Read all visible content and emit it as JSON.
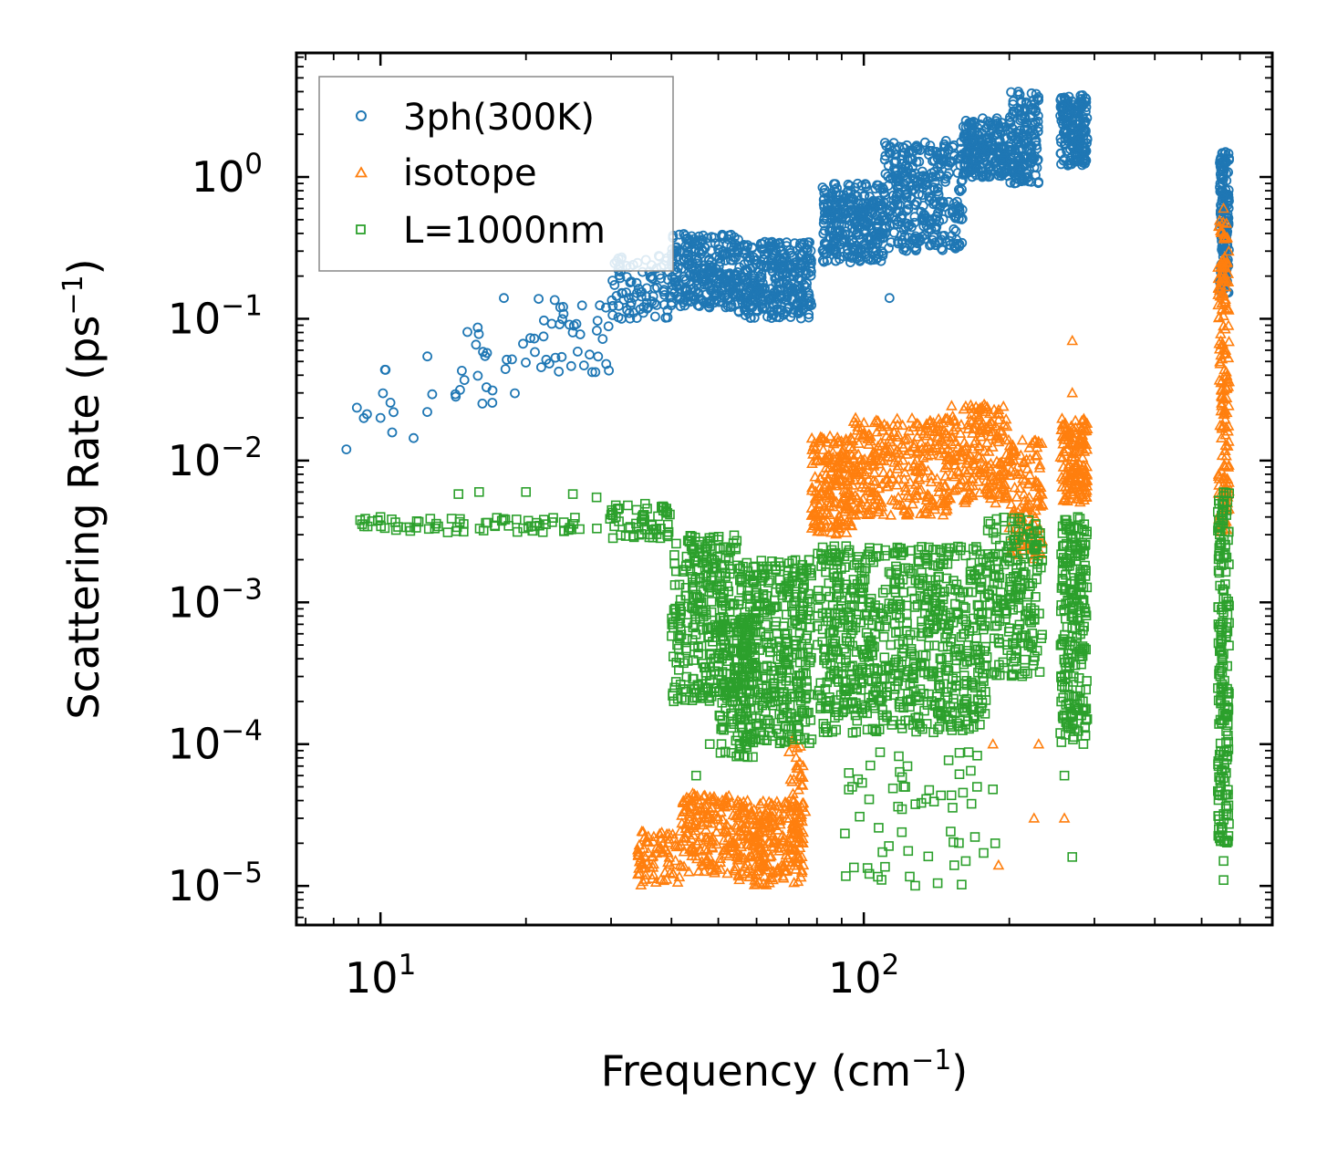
{
  "chart_data": {
    "type": "scatter",
    "xscale": "log",
    "yscale": "log",
    "xlabel": "Frequency (cm",
    "xlabel_unit_exp": "−1",
    "xlabel_close": ")",
    "ylabel": "Scattering Rate (ps",
    "ylabel_unit_exp": "−1",
    "ylabel_close": ")",
    "xlim": [
      6.7,
      700
    ],
    "ylim": [
      5.3e-06,
      7.5
    ],
    "x_ticks": [
      {
        "value": 10,
        "base": "10",
        "exp": "1"
      },
      {
        "value": 100,
        "base": "10",
        "exp": "2"
      }
    ],
    "y_ticks": [
      {
        "value": 1,
        "base": "10",
        "exp": "0"
      },
      {
        "value": 0.1,
        "base": "10",
        "exp": "−1"
      },
      {
        "value": 0.01,
        "base": "10",
        "exp": "−2"
      },
      {
        "value": 0.001,
        "base": "10",
        "exp": "−3"
      },
      {
        "value": 0.0001,
        "base": "10",
        "exp": "−4"
      },
      {
        "value": 1e-05,
        "base": "10",
        "exp": "−5"
      }
    ],
    "legend_position": "top-left",
    "series": [
      {
        "name": "3ph(300K)",
        "marker": "circle",
        "color": "#1f77b4",
        "bands": [
          {
            "x": [
              8.5,
              12
            ],
            "y": [
              0.012,
              0.05
            ],
            "n": 10
          },
          {
            "x": [
              12,
              20
            ],
            "y": [
              0.025,
              0.09
            ],
            "n": 25
          },
          {
            "x": [
              20,
              30
            ],
            "y": [
              0.04,
              0.14
            ],
            "n": 40
          },
          {
            "x": [
              30,
              40
            ],
            "y": [
              0.1,
              0.28
            ],
            "n": 90
          },
          {
            "x": [
              40,
              55
            ],
            "y": [
              0.12,
              0.4
            ],
            "n": 280
          },
          {
            "x": [
              55,
              78
            ],
            "y": [
              0.1,
              0.35
            ],
            "n": 320
          },
          {
            "x": [
              82,
              110
            ],
            "y": [
              0.25,
              0.9
            ],
            "n": 300
          },
          {
            "x": [
              110,
              160
            ],
            "y": [
              0.3,
              1.8
            ],
            "n": 320
          },
          {
            "x": [
              160,
              200
            ],
            "y": [
              1.0,
              2.6
            ],
            "n": 200
          },
          {
            "x": [
              200,
              230
            ],
            "y": [
              0.9,
              4.0
            ],
            "n": 160
          },
          {
            "x": [
              255,
              290
            ],
            "y": [
              1.2,
              3.8
            ],
            "n": 180
          },
          {
            "x": [
              545,
              570
            ],
            "y": [
              0.15,
              1.5
            ],
            "n": 160
          }
        ],
        "points": [
          [
            18,
            0.14
          ],
          [
            113,
            0.14
          ],
          [
            12.5,
            0.022
          ],
          [
            10,
            0.02
          ],
          [
            8.5,
            0.012
          ]
        ]
      },
      {
        "name": "isotope",
        "marker": "triangle",
        "color": "#ff7f0e",
        "bands": [
          {
            "x": [
              34,
              42
            ],
            "y": [
              1e-05,
              2.5e-05
            ],
            "n": 80
          },
          {
            "x": [
              42,
              55
            ],
            "y": [
              1.2e-05,
              4.5e-05
            ],
            "n": 180
          },
          {
            "x": [
              55,
              75
            ],
            "y": [
              1e-05,
              4e-05
            ],
            "n": 260
          },
          {
            "x": [
              70,
              76
            ],
            "y": [
              2e-05,
              0.00012
            ],
            "n": 40
          },
          {
            "x": [
              78,
              95
            ],
            "y": [
              0.003,
              0.015
            ],
            "n": 200
          },
          {
            "x": [
              95,
              150
            ],
            "y": [
              0.004,
              0.02
            ],
            "n": 300
          },
          {
            "x": [
              150,
              200
            ],
            "y": [
              0.005,
              0.025
            ],
            "n": 200
          },
          {
            "x": [
              200,
              235
            ],
            "y": [
              0.002,
              0.015
            ],
            "n": 120
          },
          {
            "x": [
              255,
              290
            ],
            "y": [
              0.005,
              0.02
            ],
            "n": 150
          },
          {
            "x": [
              540,
              570
            ],
            "y": [
              0.003,
              0.5
            ],
            "n": 180
          }
        ],
        "points": [
          [
            270,
            0.07
          ],
          [
            270,
            0.03
          ],
          [
            185,
            0.0001
          ],
          [
            190,
            1.4e-05
          ],
          [
            225,
            3e-05
          ],
          [
            260,
            3e-05
          ],
          [
            555,
            0.6
          ],
          [
            230,
            0.0001
          ]
        ]
      },
      {
        "name": "L=1000nm",
        "marker": "square",
        "color": "#2ca02c",
        "bands": [
          {
            "x": [
              8.5,
              30
            ],
            "y": [
              0.0031,
              0.004
            ],
            "n": 70
          },
          {
            "x": [
              30,
              40
            ],
            "y": [
              0.0028,
              0.005
            ],
            "n": 60
          },
          {
            "x": [
              40,
              55
            ],
            "y": [
              0.0002,
              0.003
            ],
            "n": 300
          },
          {
            "x": [
              50,
              60
            ],
            "y": [
              8e-05,
              0.0008
            ],
            "n": 120
          },
          {
            "x": [
              55,
              78
            ],
            "y": [
              0.0001,
              0.002
            ],
            "n": 400
          },
          {
            "x": [
              80,
              180
            ],
            "y": [
              0.00012,
              0.0025
            ],
            "n": 750
          },
          {
            "x": [
              180,
              235
            ],
            "y": [
              0.0003,
              0.004
            ],
            "n": 200
          },
          {
            "x": [
              255,
              290
            ],
            "y": [
              0.0001,
              0.004
            ],
            "n": 220
          },
          {
            "x": [
              540,
              570
            ],
            "y": [
              2e-05,
              0.006
            ],
            "n": 200
          },
          {
            "x": [
              90,
              180
            ],
            "y": [
              1e-05,
              9e-05
            ],
            "n": 60
          }
        ],
        "points": [
          [
            12,
            0.0037
          ],
          [
            16,
            0.006
          ],
          [
            14.5,
            0.0058
          ],
          [
            10,
            0.004
          ],
          [
            20,
            0.006
          ],
          [
            25,
            0.0058
          ],
          [
            28,
            0.0055
          ],
          [
            185,
            4.8e-05
          ],
          [
            187,
            2e-05
          ],
          [
            260,
            6e-05
          ],
          [
            270,
            1.6e-05
          ],
          [
            555,
            1.1e-05
          ],
          [
            555,
            1.5e-05
          ],
          [
            45,
            6e-05
          ],
          [
            48,
            0.0001
          ]
        ]
      }
    ]
  }
}
